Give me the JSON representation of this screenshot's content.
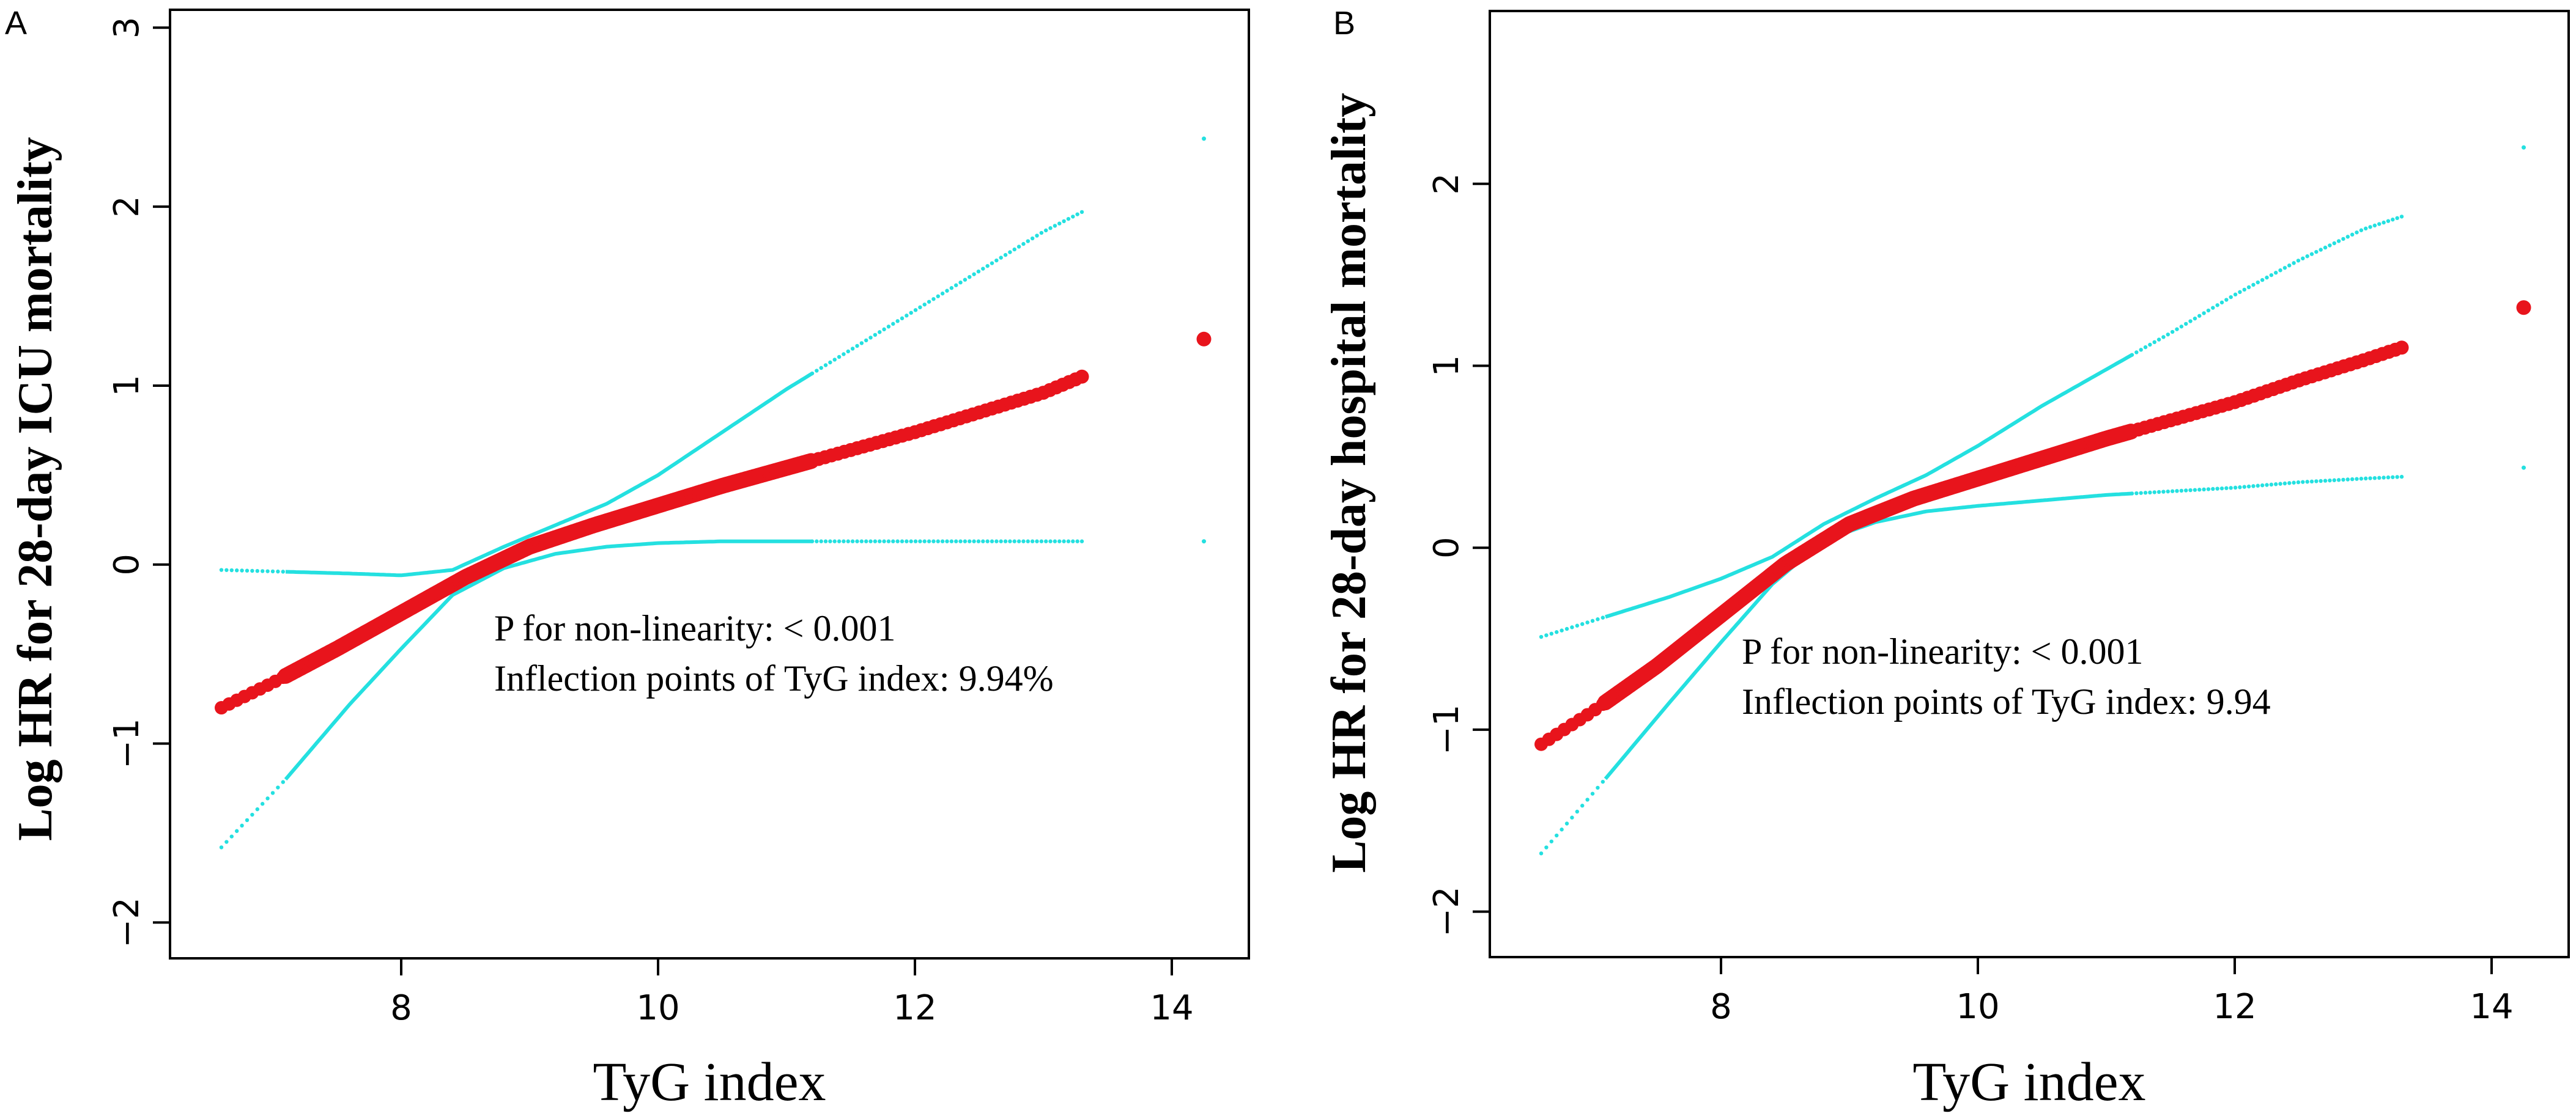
{
  "chart_data": [
    {
      "type": "line",
      "panel_label": "A",
      "xlabel": "TyG index",
      "ylabel": "Log HR for 28-day ICU mortality",
      "xlim": [
        6.2,
        14.6
      ],
      "ylim": [
        -2.2,
        3.1
      ],
      "xticks": [
        8,
        10,
        12,
        14
      ],
      "yticks": [
        -2,
        -1,
        0,
        1,
        2,
        3
      ],
      "annotations": [
        "P for non-linearity:  < 0.001",
        "Inflection points of TyG index: 9.94%"
      ],
      "series": [
        {
          "name": "Estimate",
          "color": "#e8141c",
          "style": "thick-dots",
          "x": [
            6.6,
            7.0,
            7.5,
            8.0,
            8.5,
            9.0,
            9.5,
            10.0,
            10.5,
            11.0,
            11.5,
            12.0,
            12.5,
            13.0,
            13.3
          ],
          "y": [
            -0.8,
            -0.66,
            -0.47,
            -0.27,
            -0.07,
            0.1,
            0.22,
            0.33,
            0.44,
            0.54,
            0.64,
            0.74,
            0.85,
            0.96,
            1.05
          ]
        },
        {
          "name": "Upper 95% CI",
          "color": "#24e0e0",
          "style": "line",
          "x": [
            6.6,
            7.1,
            7.6,
            8.0,
            8.4,
            8.8,
            9.2,
            9.6,
            10.0,
            10.5,
            11.0,
            11.5,
            12.0,
            12.5,
            13.0,
            13.3
          ],
          "y": [
            -0.03,
            -0.04,
            -0.05,
            -0.06,
            -0.03,
            0.1,
            0.22,
            0.34,
            0.5,
            0.74,
            0.98,
            1.2,
            1.42,
            1.64,
            1.86,
            1.97
          ]
        },
        {
          "name": "Lower 95% CI",
          "color": "#24e0e0",
          "style": "line",
          "x": [
            6.6,
            7.1,
            7.6,
            8.0,
            8.4,
            8.8,
            9.2,
            9.6,
            10.0,
            10.5,
            11.0,
            11.5,
            12.0,
            12.5,
            13.0,
            13.3
          ],
          "y": [
            -1.58,
            -1.2,
            -0.78,
            -0.47,
            -0.17,
            -0.02,
            0.06,
            0.1,
            0.12,
            0.13,
            0.13,
            0.13,
            0.13,
            0.13,
            0.13,
            0.13
          ]
        }
      ],
      "outlier": {
        "x": 14.25,
        "y": 1.26,
        "upper": 2.38,
        "lower": 0.13
      }
    },
    {
      "type": "line",
      "panel_label": "B",
      "xlabel": "TyG index",
      "ylabel": "Log HR for 28-day hospital mortality",
      "xlim": [
        6.2,
        14.6
      ],
      "ylim": [
        -2.25,
        2.95
      ],
      "xticks": [
        8,
        10,
        12,
        14
      ],
      "yticks": [
        -2,
        -1,
        0,
        1,
        2
      ],
      "annotations": [
        "P for non-linearity:  < 0.001",
        "Inflection points of TyG index: 9.94"
      ],
      "series": [
        {
          "name": "Estimate",
          "color": "#e8141c",
          "style": "thick-dots",
          "x": [
            6.6,
            7.0,
            7.5,
            8.0,
            8.5,
            9.0,
            9.5,
            10.0,
            10.5,
            11.0,
            11.5,
            12.0,
            12.5,
            13.0,
            13.3
          ],
          "y": [
            -1.08,
            -0.9,
            -0.65,
            -0.37,
            -0.09,
            0.13,
            0.27,
            0.38,
            0.49,
            0.6,
            0.7,
            0.8,
            0.92,
            1.03,
            1.1
          ]
        },
        {
          "name": "Upper 95% CI",
          "color": "#24e0e0",
          "style": "line",
          "x": [
            6.6,
            7.1,
            7.6,
            8.0,
            8.4,
            8.8,
            9.2,
            9.6,
            10.0,
            10.5,
            11.0,
            11.5,
            12.0,
            12.5,
            13.0,
            13.3
          ],
          "y": [
            -0.49,
            -0.38,
            -0.27,
            -0.17,
            -0.05,
            0.13,
            0.27,
            0.4,
            0.56,
            0.78,
            0.98,
            1.18,
            1.39,
            1.58,
            1.75,
            1.82
          ]
        },
        {
          "name": "Lower 95% CI",
          "color": "#24e0e0",
          "style": "line",
          "x": [
            6.6,
            7.1,
            7.6,
            8.0,
            8.4,
            8.8,
            9.2,
            9.6,
            10.0,
            10.5,
            11.0,
            11.5,
            12.0,
            12.5,
            13.0,
            13.3
          ],
          "y": [
            -1.68,
            -1.27,
            -0.85,
            -0.52,
            -0.2,
            0.04,
            0.14,
            0.2,
            0.23,
            0.26,
            0.29,
            0.31,
            0.33,
            0.36,
            0.38,
            0.39
          ]
        }
      ],
      "outlier": {
        "x": 14.25,
        "y": 1.32,
        "upper": 2.2,
        "lower": 0.44
      }
    }
  ]
}
